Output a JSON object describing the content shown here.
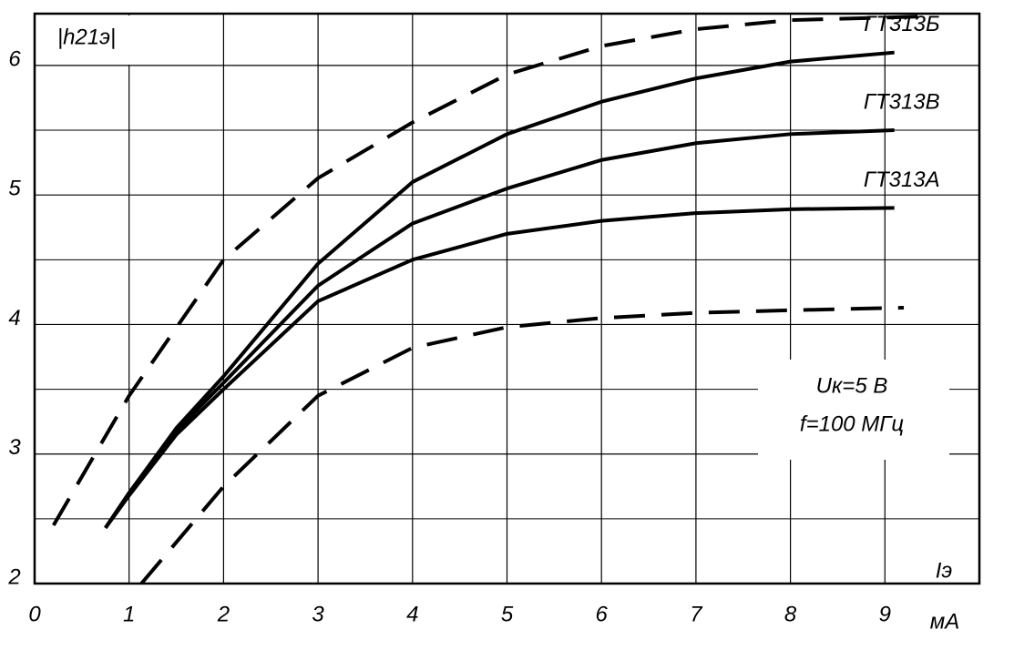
{
  "chart_data": {
    "type": "line",
    "y_label": "|h21э|",
    "x_label": "Iэ",
    "x_unit": "мА",
    "annotations": [
      "Uк=5 В",
      "f=100 МГц"
    ],
    "xlim": [
      0,
      10
    ],
    "ylim": [
      2,
      6.4
    ],
    "xticks": [
      0,
      1,
      2,
      3,
      4,
      5,
      6,
      7,
      8,
      9
    ],
    "yticks": [
      2,
      3,
      4,
      5,
      6
    ],
    "yminor": [
      2.5,
      3.5,
      4.5,
      5.5
    ],
    "grid": true,
    "series": [
      {
        "name": "ГТ313Б",
        "color": "#000000",
        "dashed": false,
        "x": [
          0.75,
          1,
          1.5,
          2,
          3,
          4,
          5,
          6,
          7,
          8,
          9.1
        ],
        "values": [
          2.43,
          2.7,
          3.2,
          3.6,
          4.47,
          5.1,
          5.47,
          5.72,
          5.9,
          6.03,
          6.1
        ]
      },
      {
        "name": "ГТ313В",
        "color": "#000000",
        "dashed": false,
        "x": [
          0.75,
          1,
          1.5,
          2,
          3,
          4,
          5,
          6,
          7,
          8,
          9.1
        ],
        "values": [
          2.43,
          2.7,
          3.18,
          3.55,
          4.3,
          4.78,
          5.05,
          5.27,
          5.4,
          5.47,
          5.5
        ]
      },
      {
        "name": "ГТ313А",
        "color": "#000000",
        "dashed": false,
        "x": [
          0.75,
          1,
          1.5,
          2,
          3,
          4,
          5,
          6,
          7,
          8,
          9.1
        ],
        "values": [
          2.43,
          2.68,
          3.15,
          3.5,
          4.18,
          4.5,
          4.7,
          4.8,
          4.86,
          4.89,
          4.9
        ]
      },
      {
        "color": "#000000",
        "dashed": true,
        "x": [
          0.2,
          1,
          2,
          3,
          4,
          5,
          6,
          7,
          8,
          9.5
        ],
        "values": [
          2.45,
          3.45,
          4.5,
          5.13,
          5.56,
          5.93,
          6.15,
          6.28,
          6.35,
          6.38
        ]
      },
      {
        "color": "#000000",
        "dashed": true,
        "x": [
          1.13,
          2,
          3,
          4,
          5,
          6,
          7,
          8,
          9.2
        ],
        "values": [
          2.0,
          2.75,
          3.45,
          3.82,
          3.98,
          4.05,
          4.09,
          4.11,
          4.13
        ]
      }
    ]
  }
}
